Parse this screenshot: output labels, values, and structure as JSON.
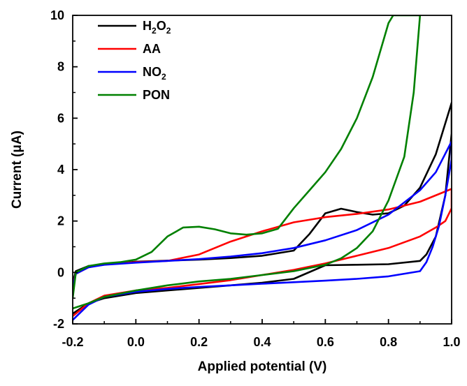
{
  "chart_data": {
    "type": "line",
    "title": "",
    "xlabel": "Applied potential (V)",
    "ylabel": "Current (μA)",
    "xlim": [
      -0.2,
      1.0
    ],
    "ylim": [
      -2,
      10
    ],
    "x_ticks": [
      "-0.2",
      "0.0",
      "0.2",
      "0.4",
      "0.6",
      "0.8",
      "1.0"
    ],
    "y_ticks": [
      "-2",
      "0",
      "2",
      "4",
      "6",
      "8",
      "10"
    ],
    "grid": false,
    "legend_position": "top-left",
    "series": [
      {
        "name": "H2O2",
        "legend_main": "H",
        "legend_sub1": "2",
        "legend_mid": "O",
        "legend_sub2": "2",
        "color": "#000000",
        "x": [
          -0.2,
          -0.19,
          -0.15,
          -0.1,
          0.0,
          0.1,
          0.2,
          0.3,
          0.4,
          0.5,
          0.55,
          0.6,
          0.65,
          0.7,
          0.75,
          0.8,
          0.85,
          0.9,
          0.95,
          1.0,
          1.0,
          0.98,
          0.95,
          0.92,
          0.9,
          0.8,
          0.7,
          0.6,
          0.5,
          0.4,
          0.3,
          0.2,
          0.1,
          0.0,
          -0.1,
          -0.15,
          -0.2
        ],
        "y": [
          -0.4,
          0.05,
          0.25,
          0.32,
          0.42,
          0.46,
          0.5,
          0.56,
          0.65,
          0.85,
          1.5,
          2.3,
          2.48,
          2.35,
          2.25,
          2.3,
          2.6,
          3.3,
          4.6,
          6.6,
          5.4,
          3.0,
          1.4,
          0.7,
          0.45,
          0.32,
          0.3,
          0.28,
          -0.25,
          -0.4,
          -0.5,
          -0.6,
          -0.7,
          -0.8,
          -1.0,
          -1.2,
          -1.6
        ]
      },
      {
        "name": "AA",
        "legend_main": "AA",
        "legend_sub1": "",
        "legend_mid": "",
        "legend_sub2": "",
        "color": "#ff0000",
        "x": [
          -0.2,
          -0.19,
          -0.15,
          -0.1,
          0.0,
          0.1,
          0.2,
          0.3,
          0.4,
          0.5,
          0.6,
          0.7,
          0.8,
          0.9,
          1.0,
          1.0,
          0.98,
          0.95,
          0.9,
          0.8,
          0.7,
          0.6,
          0.5,
          0.4,
          0.3,
          0.2,
          0.1,
          0.0,
          -0.1,
          -0.15,
          -0.2
        ],
        "y": [
          -0.5,
          -0.05,
          0.2,
          0.32,
          0.4,
          0.45,
          0.7,
          1.2,
          1.6,
          1.95,
          2.15,
          2.28,
          2.45,
          2.75,
          3.25,
          2.5,
          2.0,
          1.75,
          1.4,
          0.95,
          0.65,
          0.35,
          0.1,
          -0.1,
          -0.3,
          -0.45,
          -0.6,
          -0.7,
          -0.9,
          -1.2,
          -1.7
        ]
      },
      {
        "name": "NO2",
        "legend_main": "NO",
        "legend_sub1": "2",
        "legend_mid": "",
        "legend_sub2": "",
        "color": "#0000ff",
        "x": [
          -0.2,
          -0.19,
          -0.15,
          -0.1,
          0.0,
          0.1,
          0.2,
          0.3,
          0.4,
          0.5,
          0.6,
          0.7,
          0.8,
          0.9,
          0.95,
          1.0,
          1.0,
          0.98,
          0.96,
          0.94,
          0.92,
          0.9,
          0.8,
          0.7,
          0.6,
          0.5,
          0.4,
          0.3,
          0.2,
          0.1,
          0.0,
          -0.1,
          -0.15,
          -0.2
        ],
        "y": [
          -0.6,
          -0.05,
          0.2,
          0.3,
          0.38,
          0.45,
          0.52,
          0.62,
          0.75,
          0.95,
          1.25,
          1.65,
          2.25,
          3.2,
          3.9,
          5.1,
          4.4,
          3.0,
          1.8,
          1.0,
          0.4,
          0.05,
          -0.15,
          -0.25,
          -0.32,
          -0.38,
          -0.44,
          -0.5,
          -0.56,
          -0.64,
          -0.75,
          -0.95,
          -1.25,
          -1.85
        ]
      },
      {
        "name": "PON",
        "legend_main": "PON",
        "legend_sub1": "",
        "legend_mid": "",
        "legend_sub2": "",
        "color": "#008000",
        "x": [
          -0.2,
          -0.19,
          -0.15,
          -0.1,
          -0.05,
          0.0,
          0.05,
          0.1,
          0.15,
          0.2,
          0.25,
          0.3,
          0.35,
          0.4,
          0.45,
          0.5,
          0.55,
          0.6,
          0.65,
          0.7,
          0.75,
          0.8,
          0.815,
          0.9,
          0.88,
          0.85,
          0.8,
          0.75,
          0.7,
          0.65,
          0.6,
          0.5,
          0.4,
          0.3,
          0.2,
          0.1,
          0.0,
          -0.1,
          -0.15,
          -0.2
        ],
        "y": [
          -1.0,
          0.0,
          0.25,
          0.35,
          0.4,
          0.5,
          0.8,
          1.4,
          1.75,
          1.78,
          1.68,
          1.52,
          1.47,
          1.52,
          1.7,
          2.5,
          3.2,
          3.9,
          4.8,
          6.0,
          7.6,
          9.7,
          10.0,
          10.0,
          7.0,
          4.5,
          2.8,
          1.6,
          0.95,
          0.55,
          0.3,
          0.05,
          -0.1,
          -0.25,
          -0.35,
          -0.5,
          -0.7,
          -0.95,
          -1.2,
          -1.4
        ]
      }
    ]
  }
}
